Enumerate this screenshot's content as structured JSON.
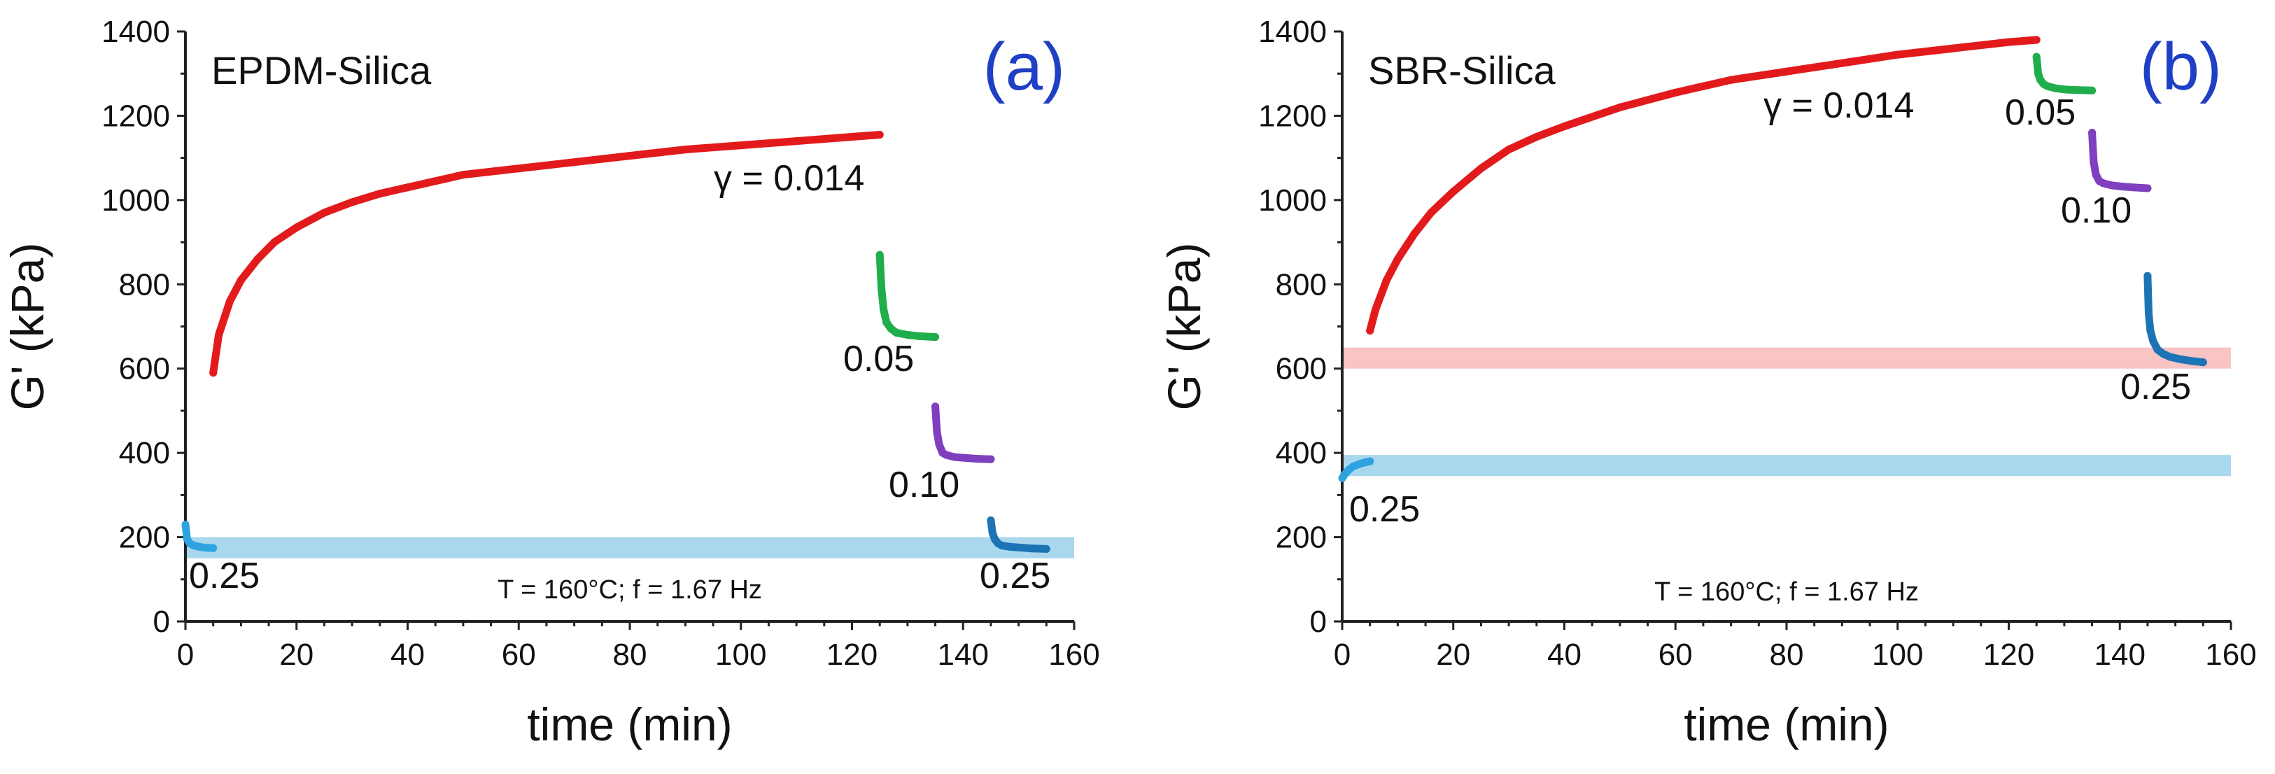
{
  "chart_data": [
    {
      "type": "scatter",
      "panel_label": "(a)",
      "title": "EPDM-Silica",
      "xlabel": "time (min)",
      "ylabel": "G'  (kPa)",
      "xlim": [
        0,
        160
      ],
      "ylim": [
        0,
        1400
      ],
      "xticks": [
        0,
        20,
        40,
        60,
        80,
        100,
        120,
        140,
        160
      ],
      "yticks": [
        0,
        200,
        400,
        600,
        800,
        1000,
        1200,
        1400
      ],
      "grid": false,
      "condition_text": "T = 160°C; f = 1.67 Hz",
      "bands": [
        {
          "y_low": 150,
          "y_high": 200,
          "color": "#a9d7ee"
        }
      ],
      "series": [
        {
          "label": "γ = 0.014",
          "color": "#e31a1c",
          "x": [
            5,
            6,
            8,
            10,
            13,
            16,
            20,
            25,
            30,
            35,
            40,
            50,
            60,
            70,
            80,
            90,
            100,
            110,
            120,
            125
          ],
          "y": [
            590,
            680,
            760,
            810,
            860,
            900,
            935,
            970,
            995,
            1015,
            1030,
            1060,
            1075,
            1090,
            1105,
            1120,
            1130,
            1140,
            1150,
            1155
          ]
        },
        {
          "label": "0.05",
          "color": "#1fae4b",
          "x": [
            125,
            125.3,
            125.7,
            126.2,
            127,
            128,
            130,
            132,
            135
          ],
          "y": [
            870,
            790,
            740,
            710,
            695,
            685,
            680,
            677,
            675
          ]
        },
        {
          "label": "0.10",
          "color": "#7f3fbf",
          "x": [
            135,
            135.3,
            135.7,
            136.3,
            137,
            138.5,
            140.5,
            142.5,
            145
          ],
          "y": [
            510,
            450,
            420,
            400,
            395,
            390,
            388,
            386,
            385
          ]
        },
        {
          "label": "0.25",
          "color": "#1d74b5",
          "x": [
            145,
            145.3,
            145.7,
            146.3,
            147,
            148.5,
            150.5,
            152.5,
            155
          ],
          "y": [
            240,
            210,
            195,
            185,
            180,
            177,
            175,
            173,
            172
          ]
        },
        {
          "label": "0.25",
          "color": "#2ea3e0",
          "x": [
            0,
            0.3,
            0.8,
            1.5,
            2.5,
            3.5,
            5
          ],
          "y": [
            230,
            195,
            185,
            180,
            177,
            175,
            174
          ]
        }
      ]
    },
    {
      "type": "scatter",
      "panel_label": "(b)",
      "title": "SBR-Silica",
      "xlabel": "time (min)",
      "ylabel": "G'  (kPa)",
      "xlim": [
        0,
        160
      ],
      "ylim": [
        0,
        1400
      ],
      "xticks": [
        0,
        20,
        40,
        60,
        80,
        100,
        120,
        140,
        160
      ],
      "yticks": [
        0,
        200,
        400,
        600,
        800,
        1000,
        1200,
        1400
      ],
      "grid": false,
      "condition_text": "T = 160°C; f = 1.67 Hz",
      "bands": [
        {
          "y_low": 600,
          "y_high": 650,
          "color": "#f8c4c4"
        },
        {
          "y_low": 345,
          "y_high": 395,
          "color": "#a9d7ee"
        }
      ],
      "series": [
        {
          "label": "γ = 0.014",
          "color": "#e31a1c",
          "x": [
            5,
            6,
            8,
            10,
            13,
            16,
            20,
            25,
            30,
            35,
            40,
            50,
            60,
            70,
            80,
            90,
            100,
            110,
            120,
            125
          ],
          "y": [
            690,
            740,
            810,
            860,
            920,
            970,
            1020,
            1075,
            1120,
            1150,
            1175,
            1220,
            1255,
            1285,
            1305,
            1325,
            1345,
            1360,
            1375,
            1380
          ]
        },
        {
          "label": "0.05",
          "color": "#1fae4b",
          "x": [
            125,
            125.3,
            125.7,
            126.3,
            127,
            128.5,
            130.5,
            132.5,
            135
          ],
          "y": [
            1340,
            1300,
            1285,
            1275,
            1270,
            1265,
            1262,
            1261,
            1260
          ]
        },
        {
          "label": "0.10",
          "color": "#7f3fbf",
          "x": [
            135,
            135.3,
            135.7,
            136.3,
            137,
            138.5,
            140.5,
            142.5,
            145
          ],
          "y": [
            1160,
            1090,
            1060,
            1045,
            1040,
            1035,
            1032,
            1030,
            1028
          ]
        },
        {
          "label": "0.25",
          "color": "#1d74b5",
          "x": [
            145,
            145.2,
            145.5,
            146,
            146.8,
            147.8,
            149,
            151,
            153,
            155
          ],
          "y": [
            820,
            730,
            690,
            665,
            645,
            635,
            628,
            622,
            618,
            615
          ]
        },
        {
          "label": "0.25",
          "color": "#2ea3e0",
          "x": [
            0,
            0.5,
            1.2,
            2,
            3,
            4,
            5
          ],
          "y": [
            340,
            350,
            360,
            368,
            373,
            377,
            380
          ]
        }
      ]
    }
  ]
}
